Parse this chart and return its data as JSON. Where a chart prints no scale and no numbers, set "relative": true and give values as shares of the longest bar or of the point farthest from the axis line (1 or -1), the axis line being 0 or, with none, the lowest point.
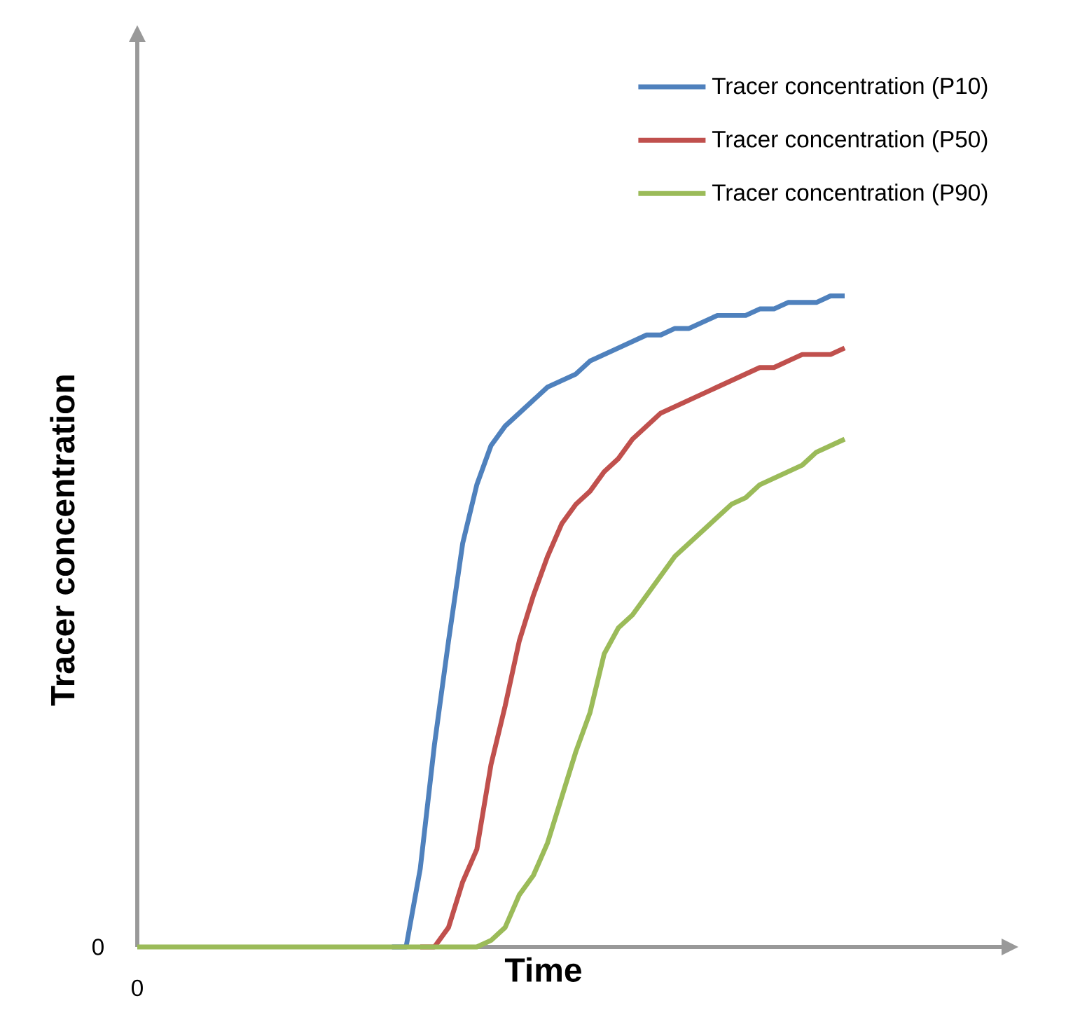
{
  "chart_data": {
    "type": "line",
    "relative": true,
    "xlabel": "Time",
    "ylabel": "Tracer concentration",
    "categories": [
      null,
      null,
      null,
      null,
      null,
      null,
      null,
      null,
      null,
      null,
      null,
      null,
      null,
      null,
      null,
      null,
      null,
      null,
      null,
      null,
      null,
      null,
      null,
      null,
      null,
      null,
      null,
      null,
      null,
      null,
      null,
      null,
      null,
      null,
      null,
      null,
      null,
      null,
      null,
      null,
      null,
      null,
      null,
      null,
      null,
      null,
      null,
      null,
      null,
      null,
      null
    ],
    "series": [
      {
        "name": "Tracer concentration (P10)",
        "color": "#4f81bd",
        "values": [
          null,
          null,
          null,
          null,
          null,
          null,
          null,
          null,
          null,
          null,
          null,
          null,
          null,
          null,
          null,
          null,
          null,
          null,
          0,
          0,
          0.12,
          0.31,
          0.47,
          0.62,
          0.71,
          0.77,
          0.8,
          0.82,
          0.84,
          0.86,
          0.87,
          0.88,
          0.9,
          0.91,
          0.92,
          0.93,
          0.94,
          0.94,
          0.95,
          0.95,
          0.96,
          0.97,
          0.97,
          0.97,
          0.98,
          0.98,
          0.99,
          0.99,
          0.99,
          1.0,
          1.0
        ]
      },
      {
        "name": "Tracer concentration (P50)",
        "color": "#c0504d",
        "values": [
          null,
          null,
          null,
          null,
          null,
          null,
          null,
          null,
          null,
          null,
          null,
          null,
          null,
          null,
          null,
          null,
          null,
          null,
          null,
          null,
          0,
          0,
          0.03,
          0.1,
          0.15,
          0.28,
          0.37,
          0.47,
          0.54,
          0.6,
          0.65,
          0.68,
          0.7,
          0.73,
          0.75,
          0.78,
          0.8,
          0.82,
          0.83,
          0.84,
          0.85,
          0.86,
          0.87,
          0.88,
          0.89,
          0.89,
          0.9,
          0.91,
          0.91,
          0.91,
          0.92
        ]
      },
      {
        "name": "Tracer concentration (P90)",
        "color": "#9bbb59",
        "values": [
          0,
          0,
          0,
          0,
          0,
          0,
          0,
          0,
          0,
          0,
          0,
          0,
          0,
          0,
          0,
          0,
          0,
          0,
          0,
          0,
          0,
          0,
          0,
          0,
          0,
          0.01,
          0.03,
          0.08,
          0.11,
          0.16,
          0.23,
          0.3,
          0.36,
          0.45,
          0.49,
          0.51,
          0.54,
          0.57,
          0.6,
          0.62,
          0.64,
          0.66,
          0.68,
          0.69,
          0.71,
          0.72,
          0.73,
          0.74,
          0.76,
          0.77,
          0.78
        ]
      }
    ],
    "legend": "top right",
    "marker": "none",
    "line_style": "solid",
    "annotations": [
      "0",
      "0"
    ]
  }
}
